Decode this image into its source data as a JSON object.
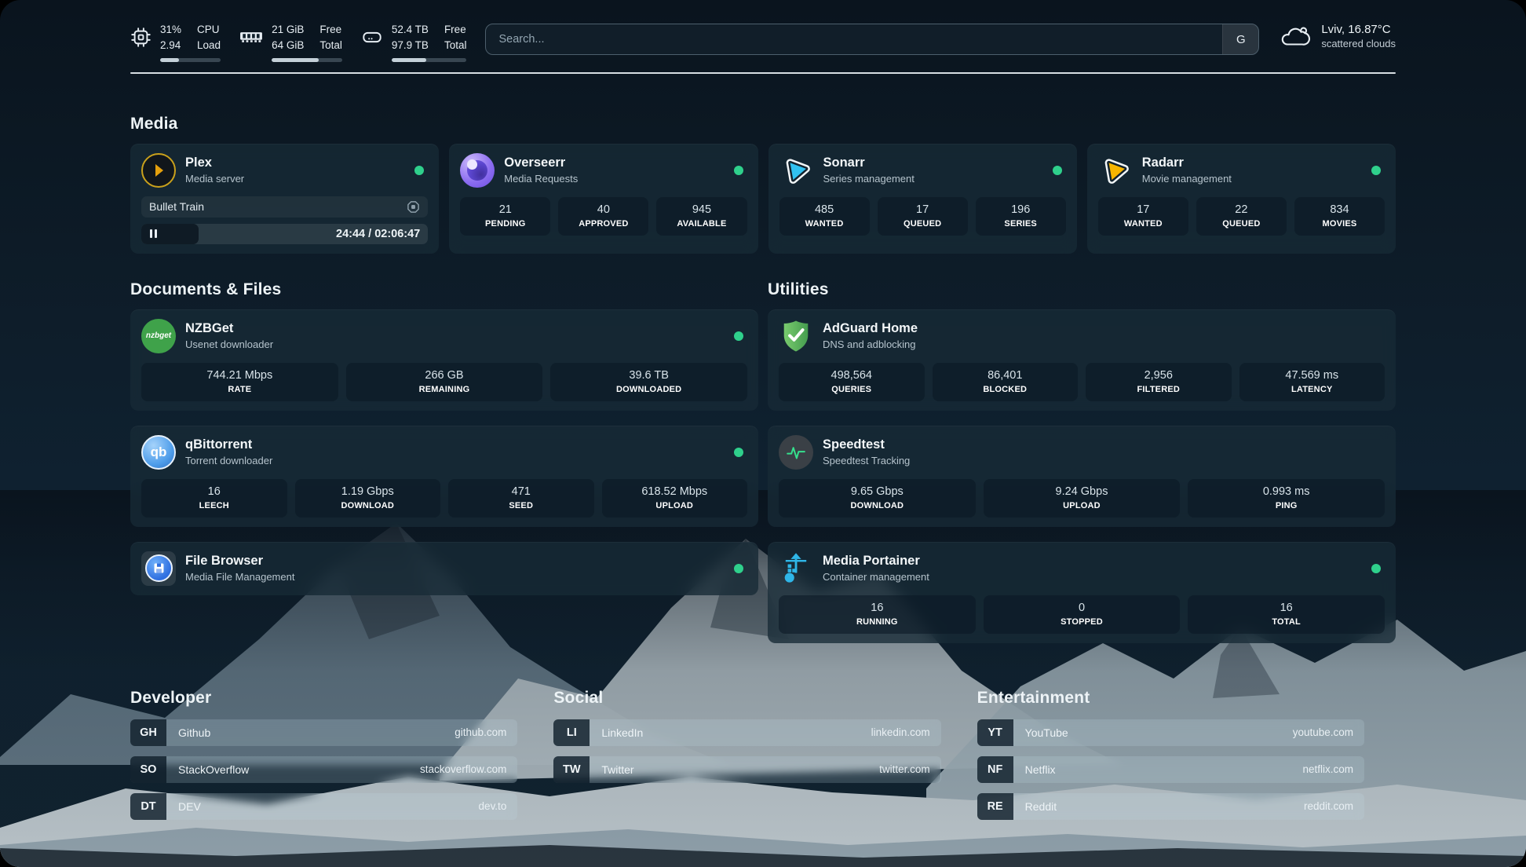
{
  "header": {
    "stats": [
      {
        "icon": "cpu-icon",
        "values": [
          "31%",
          "2.94"
        ],
        "labels": [
          "CPU",
          "Load"
        ],
        "progress": 31
      },
      {
        "icon": "memory-icon",
        "values": [
          "21 GiB",
          "64 GiB"
        ],
        "labels": [
          "Free",
          "Total"
        ],
        "progress": 67
      },
      {
        "icon": "disk-icon",
        "values": [
          "52.4 TB",
          "97.9 TB"
        ],
        "labels": [
          "Free",
          "Total"
        ],
        "progress": 46
      }
    ],
    "search": {
      "placeholder": "Search...",
      "button_label": "G"
    },
    "weather": {
      "summary": "Lviv, 16.87°C",
      "condition": "scattered clouds"
    }
  },
  "section_titles": {
    "media": "Media",
    "documents": "Documents & Files",
    "utilities": "Utilities",
    "developer": "Developer",
    "social": "Social",
    "entertainment": "Entertainment"
  },
  "media_cards": {
    "plex": {
      "name": "Plex",
      "desc": "Media server",
      "now_playing": "Bullet Train",
      "time": "24:44 / 02:06:47",
      "progress_pct": 20
    },
    "overseerr": {
      "name": "Overseerr",
      "desc": "Media Requests",
      "stats": [
        {
          "value": "21",
          "label": "PENDING"
        },
        {
          "value": "40",
          "label": "APPROVED"
        },
        {
          "value": "945",
          "label": "AVAILABLE"
        }
      ]
    },
    "sonarr": {
      "name": "Sonarr",
      "desc": "Series management",
      "stats": [
        {
          "value": "485",
          "label": "WANTED"
        },
        {
          "value": "17",
          "label": "QUEUED"
        },
        {
          "value": "196",
          "label": "SERIES"
        }
      ]
    },
    "radarr": {
      "name": "Radarr",
      "desc": "Movie management",
      "stats": [
        {
          "value": "17",
          "label": "WANTED"
        },
        {
          "value": "22",
          "label": "QUEUED"
        },
        {
          "value": "834",
          "label": "MOVIES"
        }
      ]
    }
  },
  "document_cards": {
    "nzbget": {
      "name": "NZBGet",
      "desc": "Usenet downloader",
      "stats": [
        {
          "value": "744.21 Mbps",
          "label": "RATE"
        },
        {
          "value": "266 GB",
          "label": "REMAINING"
        },
        {
          "value": "39.6 TB",
          "label": "DOWNLOADED"
        }
      ]
    },
    "qbittorrent": {
      "name": "qBittorrent",
      "desc": "Torrent downloader",
      "stats": [
        {
          "value": "16",
          "label": "LEECH"
        },
        {
          "value": "1.19 Gbps",
          "label": "DOWNLOAD"
        },
        {
          "value": "471",
          "label": "SEED"
        },
        {
          "value": "618.52 Mbps",
          "label": "UPLOAD"
        }
      ]
    },
    "filebrowser": {
      "name": "File Browser",
      "desc": "Media File Management"
    }
  },
  "utility_cards": {
    "adguard": {
      "name": "AdGuard Home",
      "desc": "DNS and adblocking",
      "stats": [
        {
          "value": "498,564",
          "label": "QUERIES"
        },
        {
          "value": "86,401",
          "label": "BLOCKED"
        },
        {
          "value": "2,956",
          "label": "FILTERED"
        },
        {
          "value": "47.569 ms",
          "label": "LATENCY"
        }
      ]
    },
    "speedtest": {
      "name": "Speedtest",
      "desc": "Speedtest Tracking",
      "stats": [
        {
          "value": "9.65 Gbps",
          "label": "DOWNLOAD"
        },
        {
          "value": "9.24 Gbps",
          "label": "UPLOAD"
        },
        {
          "value": "0.993 ms",
          "label": "PING"
        }
      ]
    },
    "portainer": {
      "name": "Media Portainer",
      "desc": "Container management",
      "stats": [
        {
          "value": "16",
          "label": "RUNNING"
        },
        {
          "value": "0",
          "label": "STOPPED"
        },
        {
          "value": "16",
          "label": "TOTAL"
        }
      ]
    }
  },
  "links": {
    "developer": [
      {
        "abbr": "GH",
        "name": "Github",
        "url": "github.com"
      },
      {
        "abbr": "SO",
        "name": "StackOverflow",
        "url": "stackoverflow.com"
      },
      {
        "abbr": "DT",
        "name": "DEV",
        "url": "dev.to"
      }
    ],
    "social": [
      {
        "abbr": "LI",
        "name": "LinkedIn",
        "url": "linkedin.com"
      },
      {
        "abbr": "TW",
        "name": "Twitter",
        "url": "twitter.com"
      }
    ],
    "entertainment": [
      {
        "abbr": "YT",
        "name": "YouTube",
        "url": "youtube.com"
      },
      {
        "abbr": "NF",
        "name": "Netflix",
        "url": "netflix.com"
      },
      {
        "abbr": "RE",
        "name": "Reddit",
        "url": "reddit.com"
      }
    ]
  },
  "icon_labels": {
    "nzbget": "nzbget",
    "qbittorrent": "qb"
  },
  "colors": {
    "status_online": "#2fd08c",
    "plex_gold": "#e5a00d",
    "sonarr_blue": "#30c1f0",
    "radarr_orange": "#f7b500",
    "adguard_green": "#5cb85c",
    "portainer_blue": "#2fb6e8"
  }
}
